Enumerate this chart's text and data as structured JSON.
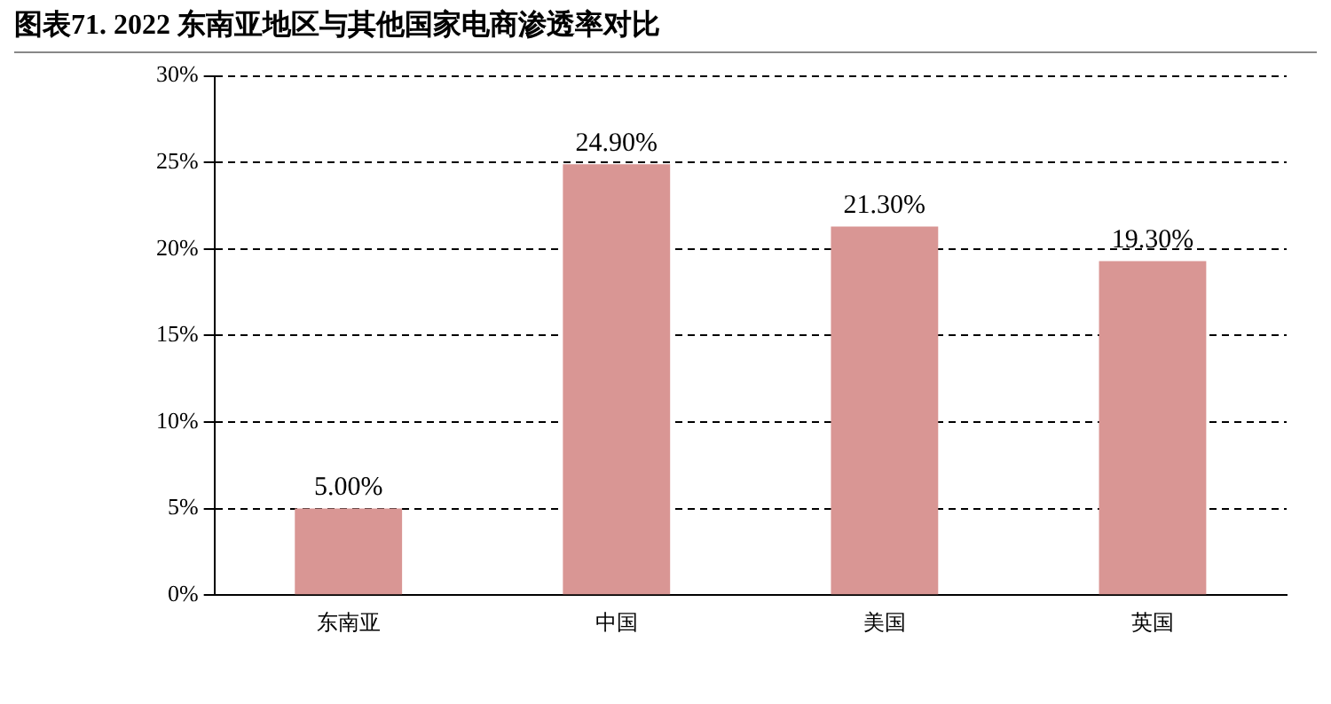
{
  "chart_data": {
    "type": "bar",
    "title": "图表71. 2022 东南亚地区与其他国家电商渗透率对比",
    "categories": [
      "东南亚",
      "中国",
      "美国",
      "英国"
    ],
    "values": [
      5,
      24.9,
      21.3,
      19.3
    ],
    "value_labels": [
      "5.00%",
      "24.90%",
      "21.30%",
      "19.30%"
    ],
    "color": "#d99694",
    "ylim": [
      0,
      30
    ],
    "yticks": [
      {
        "value": 0,
        "label": "0%"
      },
      {
        "value": 5,
        "label": "5%"
      },
      {
        "value": 10,
        "label": "10%"
      },
      {
        "value": 15,
        "label": "15%"
      },
      {
        "value": 20,
        "label": "20%"
      },
      {
        "value": 25,
        "label": "25%"
      },
      {
        "value": 30,
        "label": "30%"
      }
    ],
    "grid": "y",
    "line_style": "dashed"
  }
}
